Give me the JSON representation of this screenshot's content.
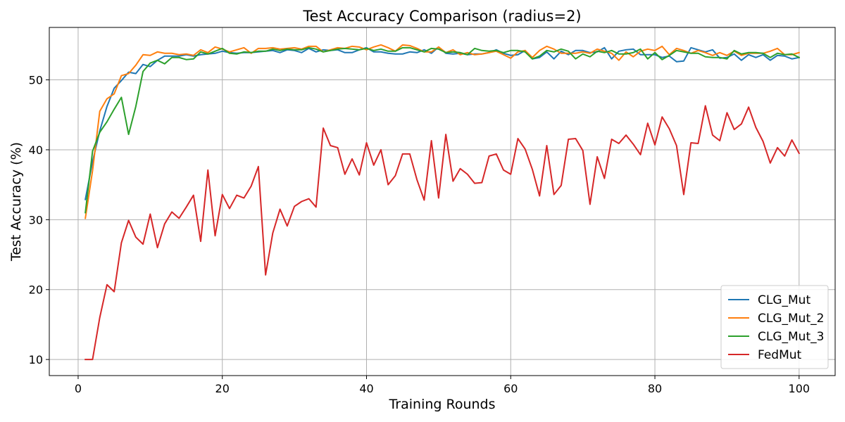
{
  "chart_data": {
    "type": "line",
    "title": "Test Accuracy Comparison (radius=2)",
    "xlabel": "Training Rounds",
    "ylabel": "Test Accuracy (%)",
    "xlim": [
      -4,
      105
    ],
    "ylim": [
      7.7,
      57.5
    ],
    "xticks": [
      0,
      20,
      40,
      60,
      80,
      100
    ],
    "yticks": [
      10,
      20,
      30,
      40,
      50
    ],
    "grid": true,
    "legend_position": "bottom-right",
    "x": [
      1,
      2,
      3,
      4,
      5,
      6,
      7,
      8,
      9,
      10,
      11,
      12,
      13,
      14,
      15,
      16,
      17,
      18,
      19,
      20,
      21,
      22,
      23,
      24,
      25,
      26,
      27,
      28,
      29,
      30,
      31,
      32,
      33,
      34,
      35,
      36,
      37,
      38,
      39,
      40,
      41,
      42,
      43,
      44,
      45,
      46,
      47,
      48,
      49,
      50,
      51,
      52,
      53,
      54,
      55,
      56,
      57,
      58,
      59,
      60,
      61,
      62,
      63,
      64,
      65,
      66,
      67,
      68,
      69,
      70,
      71,
      72,
      73,
      74,
      75,
      76,
      77,
      78,
      79,
      80,
      81,
      82,
      83,
      84,
      85,
      86,
      87,
      88,
      89,
      90,
      91,
      92,
      93,
      94,
      95,
      96,
      97,
      98,
      99,
      100
    ],
    "series": [
      {
        "name": "CLG_Mut",
        "color": "#1f77b4",
        "values": [
          32.9,
          38.3,
          42.7,
          46.2,
          48.8,
          49.9,
          51.1,
          50.9,
          52.2,
          51.9,
          52.8,
          53.4,
          53.4,
          53.4,
          53.6,
          53.4,
          53.6,
          53.7,
          53.8,
          54.1,
          53.9,
          53.8,
          53.9,
          53.9,
          54.0,
          54.1,
          54.2,
          53.9,
          54.3,
          54.2,
          53.9,
          54.5,
          54.0,
          54.3,
          54.2,
          54.3,
          53.9,
          53.9,
          54.3,
          54.6,
          54.0,
          54.0,
          53.8,
          53.7,
          53.7,
          54.0,
          53.9,
          54.3,
          53.8,
          54.7,
          53.8,
          53.7,
          53.8,
          53.6,
          53.7,
          53.7,
          53.9,
          54.3,
          53.8,
          53.5,
          53.6,
          54.2,
          53.0,
          53.2,
          54.0,
          53.0,
          54.1,
          53.6,
          54.2,
          54.2,
          53.9,
          54.0,
          54.6,
          53.0,
          54.1,
          54.3,
          54.4,
          53.6,
          53.6,
          53.6,
          53.2,
          53.4,
          52.6,
          52.7,
          54.6,
          54.3,
          54.0,
          54.3,
          53.1,
          53.2,
          53.7,
          52.8,
          53.6,
          53.2,
          53.6,
          52.8,
          53.5,
          53.4,
          53.0,
          53.2
        ]
      },
      {
        "name": "CLG_Mut_2",
        "color": "#ff7f0e",
        "values": [
          30.2,
          37.0,
          45.5,
          47.3,
          48.0,
          50.6,
          50.9,
          52.1,
          53.6,
          53.5,
          54.0,
          53.8,
          53.8,
          53.6,
          53.7,
          53.5,
          54.3,
          53.9,
          54.7,
          54.4,
          54.0,
          54.3,
          54.6,
          53.8,
          54.5,
          54.5,
          54.6,
          54.4,
          54.5,
          54.6,
          54.4,
          54.8,
          54.8,
          54.0,
          54.3,
          54.6,
          54.5,
          54.8,
          54.7,
          54.3,
          54.7,
          55.0,
          54.6,
          54.1,
          55.0,
          54.9,
          54.5,
          54.0,
          54.0,
          54.7,
          53.9,
          54.3,
          53.6,
          53.9,
          53.6,
          53.7,
          53.9,
          54.1,
          53.6,
          53.1,
          54.0,
          54.2,
          53.2,
          54.2,
          54.8,
          54.4,
          53.8,
          53.8,
          53.8,
          54.0,
          53.8,
          54.4,
          54.1,
          53.8,
          52.8,
          54.0,
          53.3,
          54.1,
          54.4,
          54.2,
          54.8,
          53.6,
          54.5,
          54.2,
          53.8,
          54.2,
          53.9,
          53.5,
          53.9,
          53.5,
          54.1,
          53.5,
          53.8,
          53.8,
          53.8,
          54.1,
          54.5,
          53.6,
          53.6,
          53.9
        ]
      },
      {
        "name": "CLG_Mut_3",
        "color": "#2ca02c",
        "values": [
          31.0,
          39.8,
          42.5,
          44.0,
          45.8,
          47.5,
          42.2,
          46.2,
          51.2,
          52.4,
          52.8,
          52.3,
          53.2,
          53.2,
          52.9,
          53.0,
          54.0,
          53.7,
          54.1,
          54.5,
          53.8,
          53.7,
          54.0,
          53.9,
          54.1,
          54.1,
          54.4,
          54.2,
          54.4,
          54.3,
          54.3,
          54.6,
          54.4,
          54.0,
          54.2,
          54.4,
          54.5,
          54.4,
          54.3,
          54.5,
          54.2,
          54.4,
          54.1,
          54.1,
          54.6,
          54.6,
          54.3,
          54.0,
          54.5,
          54.4,
          53.9,
          54.0,
          53.9,
          53.6,
          54.5,
          54.2,
          54.1,
          54.2,
          53.9,
          54.2,
          54.2,
          54.0,
          53.0,
          53.4,
          54.2,
          54.0,
          54.4,
          54.1,
          53.0,
          53.7,
          53.3,
          54.1,
          53.9,
          54.2,
          53.7,
          53.7,
          53.9,
          54.4,
          53.0,
          53.9,
          52.9,
          53.5,
          54.2,
          54.0,
          53.8,
          53.8,
          53.3,
          53.2,
          53.2,
          53.0,
          54.2,
          53.7,
          53.9,
          53.9,
          53.8,
          53.2,
          53.8,
          53.6,
          53.7,
          53.2
        ]
      },
      {
        "name": "FedMut",
        "color": "#d62728",
        "values": [
          10.0,
          10.0,
          16.0,
          20.7,
          19.7,
          26.7,
          29.9,
          27.5,
          26.5,
          30.8,
          26.0,
          29.4,
          31.1,
          30.2,
          31.8,
          33.5,
          26.9,
          37.1,
          27.7,
          33.6,
          31.6,
          33.5,
          33.1,
          34.8,
          37.6,
          22.1,
          28.1,
          31.5,
          29.1,
          31.9,
          32.6,
          33.0,
          31.8,
          43.1,
          40.6,
          40.3,
          36.5,
          38.7,
          36.4,
          41.0,
          37.8,
          40.0,
          35.0,
          36.3,
          39.4,
          39.4,
          35.7,
          32.8,
          41.3,
          33.1,
          42.2,
          35.5,
          37.3,
          36.5,
          35.2,
          35.3,
          39.1,
          39.4,
          37.1,
          36.5,
          41.6,
          40.1,
          37.2,
          33.4,
          40.6,
          33.6,
          34.9,
          41.5,
          41.6,
          39.9,
          32.2,
          39.0,
          35.9,
          41.5,
          40.9,
          42.1,
          40.8,
          39.3,
          43.8,
          40.7,
          44.7,
          43.0,
          40.6,
          33.6,
          41.0,
          40.9,
          46.3,
          42.1,
          41.3,
          45.3,
          42.9,
          43.7,
          46.1,
          43.2,
          41.2,
          38.1,
          40.3,
          39.1,
          41.4,
          39.5
        ]
      }
    ]
  }
}
